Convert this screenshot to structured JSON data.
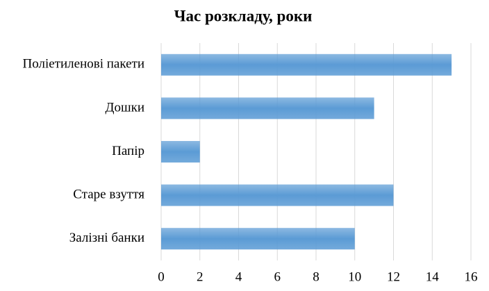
{
  "chart_data": {
    "type": "hbar",
    "title": "Час розкладу, роки",
    "categories": [
      "Поліетиленові пакети",
      "Дошки",
      "Папір",
      "Старе взуття",
      "Залізні банки"
    ],
    "values": [
      15,
      11,
      2,
      12,
      10
    ],
    "color": "#5b9bd5",
    "xlim": [
      0,
      16
    ],
    "xticks": [
      0,
      2,
      4,
      6,
      8,
      10,
      12,
      14,
      16
    ],
    "grid": true
  }
}
